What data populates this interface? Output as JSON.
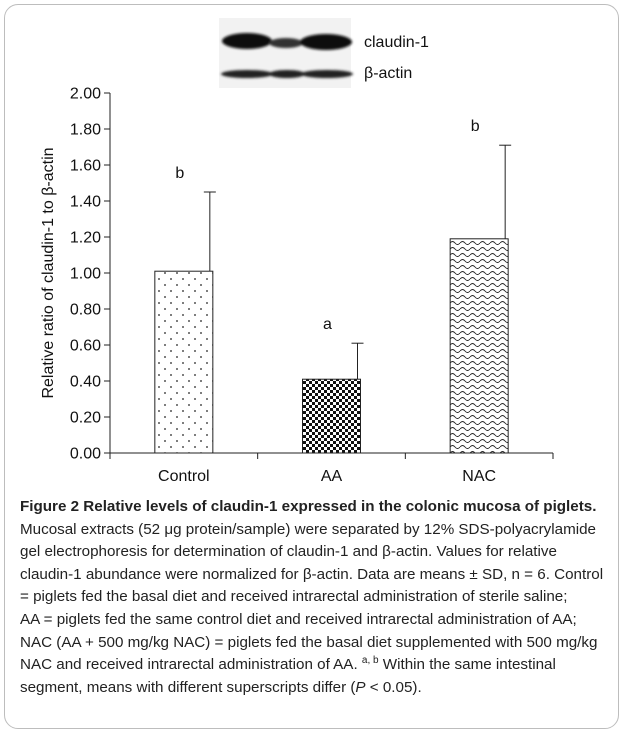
{
  "chart_data": {
    "type": "bar",
    "ylabel": "Relative  ratio of claudin-1  to β-actin",
    "ylim": [
      0,
      2.0
    ],
    "yticks": [
      "0.00",
      "0.20",
      "0.40",
      "0.60",
      "0.80",
      "1.00",
      "1.20",
      "1.40",
      "1.60",
      "1.80",
      "2.00"
    ],
    "categories": [
      "Control",
      "AA",
      "NAC"
    ],
    "values": [
      1.01,
      0.41,
      1.19
    ],
    "errors": [
      0.44,
      0.2,
      0.52
    ],
    "letters": [
      "b",
      "a",
      "b"
    ],
    "blot_labels": [
      "claudin-1",
      "β-actin"
    ],
    "grid": false
  },
  "caption": {
    "title": "Figure 2 Relative levels of claudin-1 expressed in the colonic mucosa of piglets.",
    "body1": " Mucosal extracts (52 μg protein/sample) were separated by 12% SDS-polyacrylamide gel electrophoresis for determination of claudin-1 and β-actin. Values for relative claudin-1 abundance were normalized for β-actin. Data are means ± SD, n = 6. Control = piglets fed the basal diet and received intrarectal administration of sterile saline;",
    "body2": "AA = piglets fed the same control diet and received intrarectal administration of AA; NAC (AA + 500 mg/kg NAC) = piglets fed the basal diet supplemented with 500 mg/kg NAC and received intrarectal administration of AA. ",
    "superscript": "a, b",
    "body3": " Within the same intestinal segment, means with different superscripts differ (",
    "p_symbol": "P",
    "body4": " < 0.05)."
  }
}
